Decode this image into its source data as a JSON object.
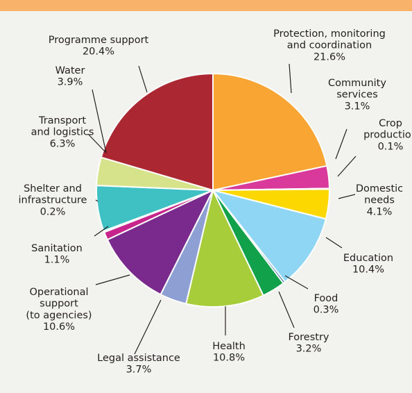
{
  "chart_data": {
    "type": "pie",
    "title": "",
    "slices": [
      {
        "label": "Protection, monitoring and coordination",
        "lines": [
          "Protection, monitoring",
          "and coordination"
        ],
        "value": 21.6,
        "value_label": "21.6%",
        "color": "#f9a533"
      },
      {
        "label": "Community services",
        "lines": [
          "Community",
          "services"
        ],
        "value": 3.1,
        "value_label": "3.1%",
        "color": "#d8399b"
      },
      {
        "label": "Crop production",
        "lines": [
          "Crop",
          "production"
        ],
        "value": 0.1,
        "value_label": "0.1%",
        "color": "#e8a0c4"
      },
      {
        "label": "Domestic needs",
        "lines": [
          "Domestic",
          "needs"
        ],
        "value": 4.1,
        "value_label": "4.1%",
        "color": "#fdd800"
      },
      {
        "label": "Education",
        "lines": [
          "Education"
        ],
        "value": 10.4,
        "value_label": "10.4%",
        "color": "#8fd6f5"
      },
      {
        "label": "Food",
        "lines": [
          "Food"
        ],
        "value": 0.3,
        "value_label": "0.3%",
        "color": "#1c5aa6"
      },
      {
        "label": "Forestry",
        "lines": [
          "Forestry"
        ],
        "value": 3.2,
        "value_label": "3.2%",
        "color": "#12a14b"
      },
      {
        "label": "Health",
        "lines": [
          "Health"
        ],
        "value": 10.8,
        "value_label": "10.8%",
        "color": "#a7cd3a"
      },
      {
        "label": "Legal assistance",
        "lines": [
          "Legal assistance"
        ],
        "value": 3.7,
        "value_label": "3.7%",
        "color": "#8e9fd4"
      },
      {
        "label": "Operational support (to agencies)",
        "lines": [
          "Operational",
          "support",
          "(to agencies)"
        ],
        "value": 10.6,
        "value_label": "10.6%",
        "color": "#7a2a8c"
      },
      {
        "label": "Sanitation",
        "lines": [
          "Sanitation"
        ],
        "value": 1.1,
        "value_label": "1.1%",
        "color": "#c7258c"
      },
      {
        "label": "Shelter and infrastructure",
        "lines": [
          "Shelter and",
          "infrastructure"
        ],
        "value": 0.2,
        "value_label": "0.2%",
        "color": "#2fa8a4"
      },
      {
        "label": "Transport and logistics",
        "lines": [
          "Transport",
          "and logistics"
        ],
        "value": 6.3,
        "value_label": "6.3%",
        "color": "#3fc1c3"
      },
      {
        "label": "Water",
        "lines": [
          "Water"
        ],
        "value": 3.9,
        "value_label": "3.9%",
        "color": "#d7e38a"
      },
      {
        "label": "Programme support",
        "lines": [
          "Programme support"
        ],
        "value": 20.4,
        "value_label": "20.4%",
        "color": "#ab2832"
      }
    ]
  }
}
